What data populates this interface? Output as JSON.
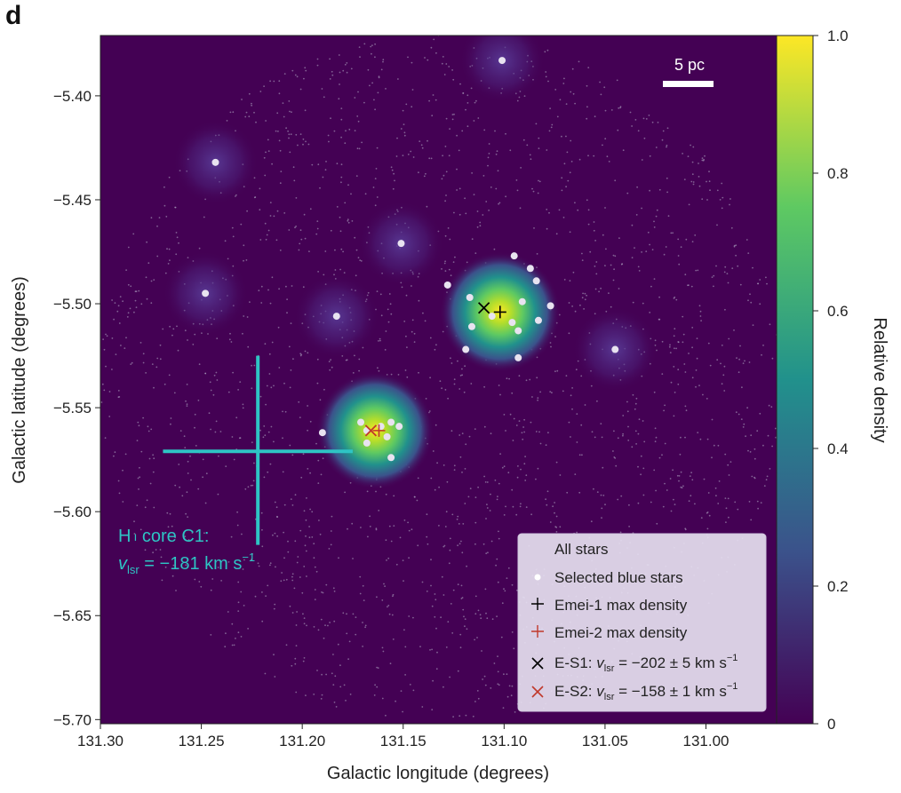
{
  "panel_label": "d",
  "colors": {
    "background": "#440154",
    "core_line": "#2ec4c4",
    "field_star": "#b7b0c8",
    "blue_star": "#e8e3f0",
    "emei1_marker": "#000000",
    "emei2_marker": "#c0392b",
    "legend_bg": "#e6dff0",
    "colorbar_stops": [
      "#440154",
      "#3b528b",
      "#21918c",
      "#5ec962",
      "#fde725"
    ]
  },
  "chart_data": {
    "type": "heatmap",
    "xlabel": "Galactic longitude (degrees)",
    "ylabel": "Galactic latitude (degrees)",
    "xlim": [
      131.3,
      130.965
    ],
    "ylim": [
      -5.702,
      -5.371
    ],
    "x_inverted": true,
    "x_ticks": [
      "131.30",
      "131.25",
      "131.20",
      "131.15",
      "131.10",
      "131.05",
      "131.00"
    ],
    "x_tick_values": [
      131.3,
      131.25,
      131.2,
      131.15,
      131.1,
      131.05,
      131.0
    ],
    "y_ticks": [
      "−5.40",
      "−5.45",
      "−5.50",
      "−5.55",
      "−5.60",
      "−5.65",
      "−5.70"
    ],
    "y_tick_values": [
      -5.4,
      -5.45,
      -5.5,
      -5.55,
      -5.6,
      -5.65,
      -5.7
    ],
    "colorbar": {
      "label": "Relative density",
      "ticks": [
        "0",
        "0.2",
        "0.4",
        "0.6",
        "0.8",
        "1.0"
      ],
      "tick_values": [
        0,
        0.2,
        0.4,
        0.6,
        0.8,
        1.0
      ],
      "range": [
        0,
        1.0
      ],
      "colormap": "viridis"
    },
    "scale_bar": {
      "label": "5 pc"
    },
    "density_peaks": [
      {
        "l": 131.102,
        "b": -5.504,
        "relative_density": 1.0
      },
      {
        "l": 131.164,
        "b": -5.561,
        "relative_density": 0.95
      },
      {
        "l": 131.101,
        "b": -5.383,
        "relative_density": 0.12
      },
      {
        "l": 131.243,
        "b": -5.432,
        "relative_density": 0.1
      },
      {
        "l": 131.151,
        "b": -5.471,
        "relative_density": 0.1
      },
      {
        "l": 131.248,
        "b": -5.495,
        "relative_density": 0.1
      },
      {
        "l": 131.183,
        "b": -5.506,
        "relative_density": 0.08
      },
      {
        "l": 131.045,
        "b": -5.522,
        "relative_density": 0.06
      }
    ],
    "selected_blue_stars": [
      {
        "l": 131.101,
        "b": -5.383
      },
      {
        "l": 131.243,
        "b": -5.432
      },
      {
        "l": 131.151,
        "b": -5.471
      },
      {
        "l": 131.248,
        "b": -5.495
      },
      {
        "l": 131.183,
        "b": -5.506
      },
      {
        "l": 131.095,
        "b": -5.477
      },
      {
        "l": 131.087,
        "b": -5.483
      },
      {
        "l": 131.084,
        "b": -5.489
      },
      {
        "l": 131.128,
        "b": -5.491
      },
      {
        "l": 131.117,
        "b": -5.497
      },
      {
        "l": 131.091,
        "b": -5.499
      },
      {
        "l": 131.077,
        "b": -5.501
      },
      {
        "l": 131.106,
        "b": -5.506
      },
      {
        "l": 131.096,
        "b": -5.509
      },
      {
        "l": 131.083,
        "b": -5.508
      },
      {
        "l": 131.116,
        "b": -5.511
      },
      {
        "l": 131.093,
        "b": -5.513
      },
      {
        "l": 131.119,
        "b": -5.522
      },
      {
        "l": 131.045,
        "b": -5.522
      },
      {
        "l": 131.093,
        "b": -5.526
      },
      {
        "l": 131.171,
        "b": -5.557
      },
      {
        "l": 131.156,
        "b": -5.557
      },
      {
        "l": 131.161,
        "b": -5.559
      },
      {
        "l": 131.152,
        "b": -5.559
      },
      {
        "l": 131.168,
        "b": -5.561
      },
      {
        "l": 131.19,
        "b": -5.562
      },
      {
        "l": 131.158,
        "b": -5.564
      },
      {
        "l": 131.168,
        "b": -5.567
      },
      {
        "l": 131.156,
        "b": -5.574
      }
    ],
    "markers": {
      "emei1_max_density": {
        "l": 131.102,
        "b": -5.504
      },
      "emei2_max_density": {
        "l": 131.162,
        "b": -5.561
      },
      "E_S1": {
        "l": 131.11,
        "b": -5.502
      },
      "E_S2": {
        "l": 131.166,
        "b": -5.561
      }
    },
    "hi_core": {
      "center": {
        "l": 131.222,
        "b": -5.571
      },
      "l_range": [
        131.269,
        131.175
      ],
      "b_range": [
        -5.525,
        -5.616
      ],
      "label_line1_prefix": "H",
      "label_line1_roman": "ı",
      "label_line1_rest": " core C1:",
      "label_v": "v",
      "label_sub": "lsr",
      "label_value": " = −181 km s",
      "label_exp": "−1"
    },
    "legend": {
      "title": "All stars",
      "selected_blue_stars": "Selected blue stars",
      "emei1": "Emei-1 max density",
      "emei2": "Emei-2 max density",
      "es1_prefix": "E-S1: ",
      "es2_prefix": "E-S2: ",
      "v": "v",
      "v_sub": "lsr",
      "es1_value": " = −202 ± 5 km s",
      "es2_value": " = −158 ± 1 km s",
      "exp": "−1"
    }
  }
}
